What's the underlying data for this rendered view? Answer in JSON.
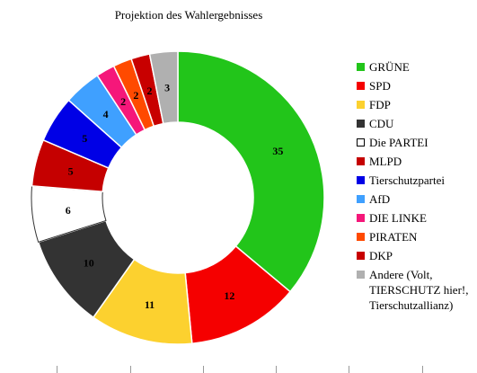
{
  "chart_data": {
    "type": "pie",
    "title": "Projektion des Wahlergebnisses",
    "legend_position": "right",
    "series": [
      {
        "name": "GRÜNE",
        "value": 35,
        "color": "#22c51a"
      },
      {
        "name": "SPD",
        "value": 12,
        "color": "#f50000"
      },
      {
        "name": "FDP",
        "value": 11,
        "color": "#fcd12f"
      },
      {
        "name": "CDU",
        "value": 10,
        "color": "#333333"
      },
      {
        "name": "Die PARTEI",
        "value": 6,
        "color": "#ffffff"
      },
      {
        "name": "MLPD",
        "value": 5,
        "color": "#c50000"
      },
      {
        "name": "Tierschutzpartei",
        "value": 5,
        "color": "#0000e6"
      },
      {
        "name": "AfD",
        "value": 4,
        "color": "#3fa0ff"
      },
      {
        "name": "DIE LINKE",
        "value": 2,
        "color": "#f5177a"
      },
      {
        "name": "PIRATEN",
        "value": 2,
        "color": "#ff4a00"
      },
      {
        "name": "DKP",
        "value": 2,
        "color": "#c80000"
      },
      {
        "name": "Andere (Volt, TIERSCHUTZ hier!, Tierschutzallianz)",
        "value": 3,
        "color": "#b0b0b0"
      }
    ]
  }
}
